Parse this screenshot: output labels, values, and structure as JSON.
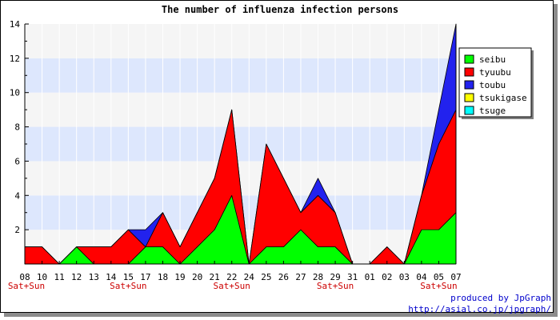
{
  "chart_data": {
    "type": "area",
    "stacked": true,
    "title": "The number of influenza infection persons",
    "xlabel": "",
    "ylabel": "",
    "ylim": [
      0,
      14
    ],
    "yticks": [
      2,
      4,
      6,
      8,
      10,
      12,
      14
    ],
    "categories": [
      "08",
      "10",
      "11",
      "12",
      "13",
      "14",
      "15",
      "17",
      "18",
      "19",
      "20",
      "21",
      "22",
      "24",
      "25",
      "26",
      "27",
      "28",
      "29",
      "31",
      "01",
      "02",
      "03",
      "04",
      "05",
      "07"
    ],
    "weekend_label": "Sat+Sun",
    "weekend_categories": [
      "08",
      "15",
      "22",
      "29",
      "05"
    ],
    "legend_position": "right",
    "grid_bands": true,
    "series": [
      {
        "name": "seibu",
        "color": "#00ff00",
        "values": [
          0,
          0,
          0,
          1,
          0,
          0,
          0,
          1,
          1,
          0,
          1,
          2,
          4,
          0,
          1,
          1,
          2,
          1,
          1,
          0,
          0,
          0,
          0,
          2,
          2,
          3
        ]
      },
      {
        "name": "tyuubu",
        "color": "#ff0000",
        "values": [
          1,
          1,
          0,
          0,
          1,
          1,
          2,
          0,
          2,
          1,
          2,
          3,
          5,
          0,
          6,
          4,
          1,
          3,
          2,
          0,
          0,
          1,
          0,
          2,
          5,
          6
        ]
      },
      {
        "name": "toubu",
        "color": "#2222ee",
        "values": [
          0,
          0,
          0,
          0,
          0,
          0,
          0,
          1,
          0,
          0,
          0,
          0,
          0,
          0,
          0,
          0,
          0,
          1,
          0,
          0,
          0,
          0,
          0,
          0,
          2,
          5
        ]
      },
      {
        "name": "tsukigase",
        "color": "#ffff00",
        "values": [
          0,
          0,
          0,
          0,
          0,
          0,
          0,
          0,
          0,
          0,
          0,
          0,
          0,
          0,
          0,
          0,
          0,
          0,
          0,
          0,
          0,
          0,
          0,
          0,
          0,
          0
        ]
      },
      {
        "name": "tsuge",
        "color": "#00ffff",
        "values": [
          0,
          0,
          0,
          0,
          0,
          0,
          0,
          0,
          0,
          0,
          0,
          0,
          0,
          0,
          0,
          0,
          0,
          0,
          0,
          0,
          0,
          0,
          0,
          0,
          0,
          0
        ]
      }
    ]
  },
  "footer": {
    "produced_by": "produced by JpGraph",
    "url": "http://asial.co.jp/jpgraph/"
  },
  "colors": {
    "band_light": "#f5f5f5",
    "band_blue": "#dde7fd",
    "weekend_text": "#cc0000",
    "footer_text": "#0000cc"
  }
}
